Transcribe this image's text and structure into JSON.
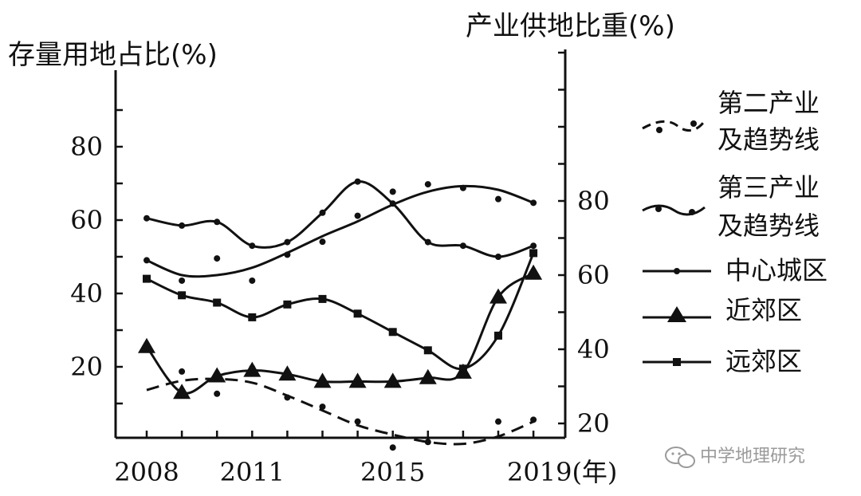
{
  "chart_data": {
    "type": "line",
    "left_axis_label": "存量用地占比(%)",
    "right_axis_label": "产业供地比重(%)",
    "x_unit_label": "2019(年)",
    "x_ticks": [
      {
        "year": 2008,
        "label": "2008"
      },
      {
        "year": 2011,
        "label": "2011"
      },
      {
        "year": 2015,
        "label": "2015"
      }
    ],
    "x_range": [
      2008,
      2019
    ],
    "y_left": {
      "range": [
        0,
        100
      ],
      "ticks": [
        20,
        40,
        60,
        80
      ]
    },
    "y_right": {
      "range": [
        0,
        100
      ],
      "ticks": [
        20,
        40,
        60,
        80
      ]
    },
    "legend": [
      {
        "key": "secondary",
        "line1": "第二产业",
        "line2": "及趋势线"
      },
      {
        "key": "tertiary",
        "line1": "第三产业",
        "line2": "及趋势线"
      },
      {
        "key": "central",
        "line1": "中心城区"
      },
      {
        "key": "near",
        "line1": "近郊区"
      },
      {
        "key": "outer",
        "line1": "远郊区"
      }
    ],
    "series": [
      {
        "key": "central",
        "axis": "left",
        "marker": "dot",
        "style": "solid",
        "points": [
          [
            2008,
            60.5
          ],
          [
            2009,
            58.5
          ],
          [
            2010,
            59.5
          ],
          [
            2011,
            53
          ],
          [
            2012,
            54
          ],
          [
            2013,
            62
          ],
          [
            2014,
            70.5
          ],
          [
            2015,
            64.5
          ],
          [
            2016,
            54
          ],
          [
            2017,
            53
          ],
          [
            2018,
            50
          ],
          [
            2019,
            53
          ]
        ]
      },
      {
        "key": "near",
        "axis": "left",
        "marker": "triangle",
        "style": "solid",
        "points": [
          [
            2008,
            25.5
          ],
          [
            2009,
            13
          ],
          [
            2010,
            17.5
          ],
          [
            2011,
            19
          ],
          [
            2012,
            18
          ],
          [
            2013,
            16
          ],
          [
            2014,
            16
          ],
          [
            2015,
            16
          ],
          [
            2016,
            17
          ],
          [
            2017,
            18.5
          ],
          [
            2018,
            39
          ],
          [
            2019,
            45.5
          ]
        ]
      },
      {
        "key": "outer",
        "axis": "left",
        "marker": "square",
        "style": "solid",
        "points": [
          [
            2008,
            44
          ],
          [
            2009,
            39.5
          ],
          [
            2010,
            37.5
          ],
          [
            2011,
            33.5
          ],
          [
            2012,
            37
          ],
          [
            2013,
            38.5
          ],
          [
            2014,
            34.5
          ],
          [
            2015,
            29.5
          ],
          [
            2016,
            24.5
          ],
          [
            2017,
            19.5
          ],
          [
            2018,
            28.5
          ],
          [
            2019,
            51
          ]
        ]
      },
      {
        "key": "tertiary",
        "axis": "right",
        "marker": "dot",
        "style": "trend-solid",
        "scatter": [
          [
            2008,
            64
          ],
          [
            2009,
            58.5
          ],
          [
            2010,
            64.5
          ],
          [
            2011,
            58.5
          ],
          [
            2012,
            65.5
          ],
          [
            2013,
            69
          ],
          [
            2014,
            76
          ],
          [
            2015,
            82.5
          ],
          [
            2016,
            84.5
          ],
          [
            2017,
            83.5
          ],
          [
            2018,
            80.5
          ],
          [
            2019,
            79.5
          ]
        ],
        "trend": [
          [
            2008,
            64
          ],
          [
            2009,
            60
          ],
          [
            2010,
            60
          ],
          [
            2011,
            62
          ],
          [
            2012,
            66
          ],
          [
            2013,
            70.5
          ],
          [
            2014,
            74.5
          ],
          [
            2015,
            79
          ],
          [
            2016,
            82.5
          ],
          [
            2017,
            84
          ],
          [
            2018,
            83
          ],
          [
            2019,
            79.5
          ]
        ]
      },
      {
        "key": "secondary",
        "axis": "right",
        "marker": "dot",
        "style": "trend-dashed",
        "scatter": [
          [
            2009,
            34
          ],
          [
            2010,
            28
          ],
          [
            2011,
            35
          ],
          [
            2012,
            27
          ],
          [
            2013,
            24.5
          ],
          [
            2014,
            20.5
          ],
          [
            2015,
            13.5
          ],
          [
            2016,
            15
          ],
          [
            2018,
            20.5
          ],
          [
            2019,
            21
          ]
        ],
        "trend": [
          [
            2008,
            29
          ],
          [
            2009,
            31.5
          ],
          [
            2010,
            32
          ],
          [
            2011,
            31
          ],
          [
            2012,
            27.5
          ],
          [
            2013,
            23.5
          ],
          [
            2014,
            19.5
          ],
          [
            2015,
            17
          ],
          [
            2016,
            15
          ],
          [
            2017,
            14.5
          ],
          [
            2018,
            16.5
          ],
          [
            2019,
            20.5
          ]
        ]
      }
    ]
  },
  "watermark": {
    "text": "中学地理研究"
  }
}
